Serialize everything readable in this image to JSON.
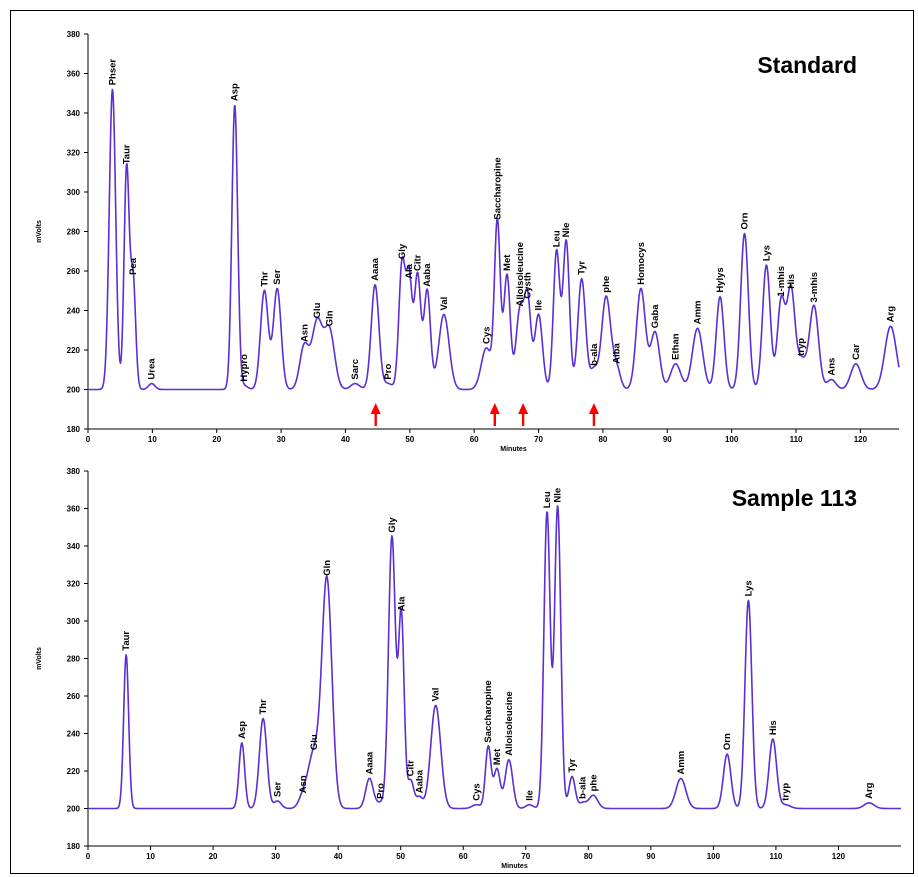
{
  "chart_data": [
    {
      "type": "line",
      "title": "Standard",
      "xlabel": "Minutes",
      "ylabel": "mVolts",
      "xlim": [
        0,
        126
      ],
      "ylim": [
        180,
        380
      ],
      "x_ticks": [
        0,
        10,
        20,
        30,
        40,
        50,
        60,
        70,
        80,
        90,
        100,
        110,
        120
      ],
      "y_ticks": [
        180,
        200,
        220,
        240,
        260,
        280,
        300,
        320,
        340,
        360,
        380
      ],
      "baseline": 200,
      "peaks": [
        {
          "label": "Phser",
          "x": 3.8,
          "y": 352,
          "w": 0.5
        },
        {
          "label": "Taur",
          "x": 6.0,
          "y": 312,
          "w": 0.4
        },
        {
          "label": "Pea",
          "x": 7.0,
          "y": 256,
          "w": 0.4
        },
        {
          "label": "Urea",
          "x": 9.9,
          "y": 203,
          "w": 0.5
        },
        {
          "label": "Asp",
          "x": 22.8,
          "y": 344,
          "w": 0.45
        },
        {
          "label": "Hypro",
          "x": 24.2,
          "y": 202,
          "w": 0.6
        },
        {
          "label": "Thr",
          "x": 27.4,
          "y": 250,
          "w": 0.6
        },
        {
          "label": "Ser",
          "x": 29.4,
          "y": 251,
          "w": 0.6
        },
        {
          "label": "Asn",
          "x": 33.6,
          "y": 222,
          "w": 0.7
        },
        {
          "label": "Glu",
          "x": 35.6,
          "y": 234,
          "w": 0.8
        },
        {
          "label": "Gln",
          "x": 37.5,
          "y": 230,
          "w": 0.8
        },
        {
          "label": "Sarc",
          "x": 41.5,
          "y": 203,
          "w": 0.7
        },
        {
          "label": "Aaaa",
          "x": 44.6,
          "y": 253,
          "w": 0.6
        },
        {
          "label": "Pro",
          "x": 46.6,
          "y": 203,
          "w": 0.7
        },
        {
          "label": "Gly",
          "x": 48.8,
          "y": 264,
          "w": 0.5
        },
        {
          "label": "Ala",
          "x": 49.9,
          "y": 254,
          "w": 0.45
        },
        {
          "label": "Citr",
          "x": 51.2,
          "y": 258,
          "w": 0.5
        },
        {
          "label": "Aaba",
          "x": 52.7,
          "y": 250,
          "w": 0.5
        },
        {
          "label": "Val",
          "x": 55.3,
          "y": 238,
          "w": 0.8
        },
        {
          "label": "Cys",
          "x": 61.9,
          "y": 221,
          "w": 0.8
        },
        {
          "label": "Saccharopine",
          "x": 63.6,
          "y": 284,
          "w": 0.45
        },
        {
          "label": "Met",
          "x": 65.1,
          "y": 258,
          "w": 0.5
        },
        {
          "label": "Alloisoleucine",
          "x": 67.1,
          "y": 240,
          "w": 0.6
        },
        {
          "label": "Cysth",
          "x": 68.3,
          "y": 244,
          "w": 0.5
        },
        {
          "label": "Ile",
          "x": 70.0,
          "y": 238,
          "w": 0.6
        },
        {
          "label": "Leu",
          "x": 72.8,
          "y": 270,
          "w": 0.5
        },
        {
          "label": "Nle",
          "x": 74.3,
          "y": 275,
          "w": 0.5
        },
        {
          "label": "Tyr",
          "x": 76.7,
          "y": 256,
          "w": 0.6
        },
        {
          "label": "b-ala",
          "x": 78.6,
          "y": 210,
          "w": 0.6
        },
        {
          "label": "phe",
          "x": 80.5,
          "y": 247,
          "w": 0.7
        },
        {
          "label": "Aiba",
          "x": 82.1,
          "y": 211,
          "w": 0.6
        },
        {
          "label": "Homocys",
          "x": 85.9,
          "y": 251,
          "w": 0.7
        },
        {
          "label": "Gaba",
          "x": 88.1,
          "y": 229,
          "w": 0.7
        },
        {
          "label": "Ethan",
          "x": 91.3,
          "y": 213,
          "w": 0.8
        },
        {
          "label": "Amm",
          "x": 94.7,
          "y": 231,
          "w": 0.8
        },
        {
          "label": "Hylys",
          "x": 98.2,
          "y": 247,
          "w": 0.6
        },
        {
          "label": "Orn",
          "x": 102.0,
          "y": 279,
          "w": 0.6
        },
        {
          "label": "Lys",
          "x": 105.4,
          "y": 263,
          "w": 0.6
        },
        {
          "label": "1-mhis",
          "x": 107.7,
          "y": 245,
          "w": 0.6
        },
        {
          "label": "His",
          "x": 109.2,
          "y": 249,
          "w": 0.6
        },
        {
          "label": "tryp",
          "x": 110.8,
          "y": 215,
          "w": 0.8
        },
        {
          "label": "3-mhis",
          "x": 112.8,
          "y": 242,
          "w": 0.7
        },
        {
          "label": "Ans",
          "x": 115.5,
          "y": 205,
          "w": 0.7
        },
        {
          "label": "Car",
          "x": 119.3,
          "y": 213,
          "w": 0.8
        },
        {
          "label": "Arg",
          "x": 124.7,
          "y": 232,
          "w": 0.9
        }
      ],
      "markers": [
        44.7,
        63.2,
        67.6,
        78.6
      ],
      "marker_color": "#ff0000",
      "line_color": "#5a2fd6"
    },
    {
      "type": "line",
      "title": "Sample 113",
      "xlabel": "Minutes",
      "ylabel": "mVolts",
      "xlim": [
        0,
        130
      ],
      "ylim": [
        180,
        380
      ],
      "x_ticks": [
        0,
        10,
        20,
        30,
        40,
        50,
        60,
        70,
        80,
        90,
        100,
        110,
        120
      ],
      "y_ticks": [
        180,
        200,
        220,
        240,
        260,
        280,
        300,
        320,
        340,
        360,
        380
      ],
      "baseline": 200,
      "peaks": [
        {
          "label": "Taur",
          "x": 6.1,
          "y": 282,
          "w": 0.4
        },
        {
          "label": "Asp",
          "x": 24.6,
          "y": 235,
          "w": 0.45
        },
        {
          "label": "Thr",
          "x": 28.0,
          "y": 248,
          "w": 0.6
        },
        {
          "label": "Ser",
          "x": 30.3,
          "y": 204,
          "w": 0.6
        },
        {
          "label": "Asn",
          "x": 34.4,
          "y": 206,
          "w": 0.7
        },
        {
          "label": "Glu",
          "x": 36.1,
          "y": 229,
          "w": 0.9
        },
        {
          "label": "Gln",
          "x": 38.2,
          "y": 322,
          "w": 0.8
        },
        {
          "label": "Aaaa",
          "x": 45.0,
          "y": 216,
          "w": 0.6
        },
        {
          "label": "Pro",
          "x": 46.8,
          "y": 203,
          "w": 0.7
        },
        {
          "label": "Gly",
          "x": 48.6,
          "y": 345,
          "w": 0.55
        },
        {
          "label": "Ala",
          "x": 50.1,
          "y": 303,
          "w": 0.45
        },
        {
          "label": "Citr",
          "x": 51.6,
          "y": 215,
          "w": 0.5
        },
        {
          "label": "Aaba",
          "x": 53.0,
          "y": 206,
          "w": 0.5
        },
        {
          "label": "Val",
          "x": 55.6,
          "y": 255,
          "w": 0.8
        },
        {
          "label": "Cys",
          "x": 62.1,
          "y": 202,
          "w": 0.7
        },
        {
          "label": "Saccharopine",
          "x": 64.0,
          "y": 233,
          "w": 0.45
        },
        {
          "label": "Met",
          "x": 65.4,
          "y": 221,
          "w": 0.5
        },
        {
          "label": "Alloisoleucine",
          "x": 67.3,
          "y": 226,
          "w": 0.6
        },
        {
          "label": "Ile",
          "x": 70.6,
          "y": 202,
          "w": 0.6
        },
        {
          "label": "Leu",
          "x": 73.4,
          "y": 358,
          "w": 0.5
        },
        {
          "label": "Nle",
          "x": 75.1,
          "y": 361,
          "w": 0.5
        },
        {
          "label": "Tyr",
          "x": 77.4,
          "y": 217,
          "w": 0.5
        },
        {
          "label": "b-ala",
          "x": 79.1,
          "y": 203,
          "w": 0.6
        },
        {
          "label": "phe",
          "x": 80.8,
          "y": 207,
          "w": 0.7
        },
        {
          "label": "Amm",
          "x": 94.8,
          "y": 216,
          "w": 0.8
        },
        {
          "label": "Orn",
          "x": 102.2,
          "y": 229,
          "w": 0.6
        },
        {
          "label": "Lys",
          "x": 105.6,
          "y": 311,
          "w": 0.55
        },
        {
          "label": "His",
          "x": 109.5,
          "y": 237,
          "w": 0.6
        },
        {
          "label": "tryp",
          "x": 111.5,
          "y": 202,
          "w": 0.8
        },
        {
          "label": "Arg",
          "x": 124.9,
          "y": 203,
          "w": 0.8
        }
      ],
      "markers": [],
      "line_color": "#5a2fd6"
    }
  ]
}
